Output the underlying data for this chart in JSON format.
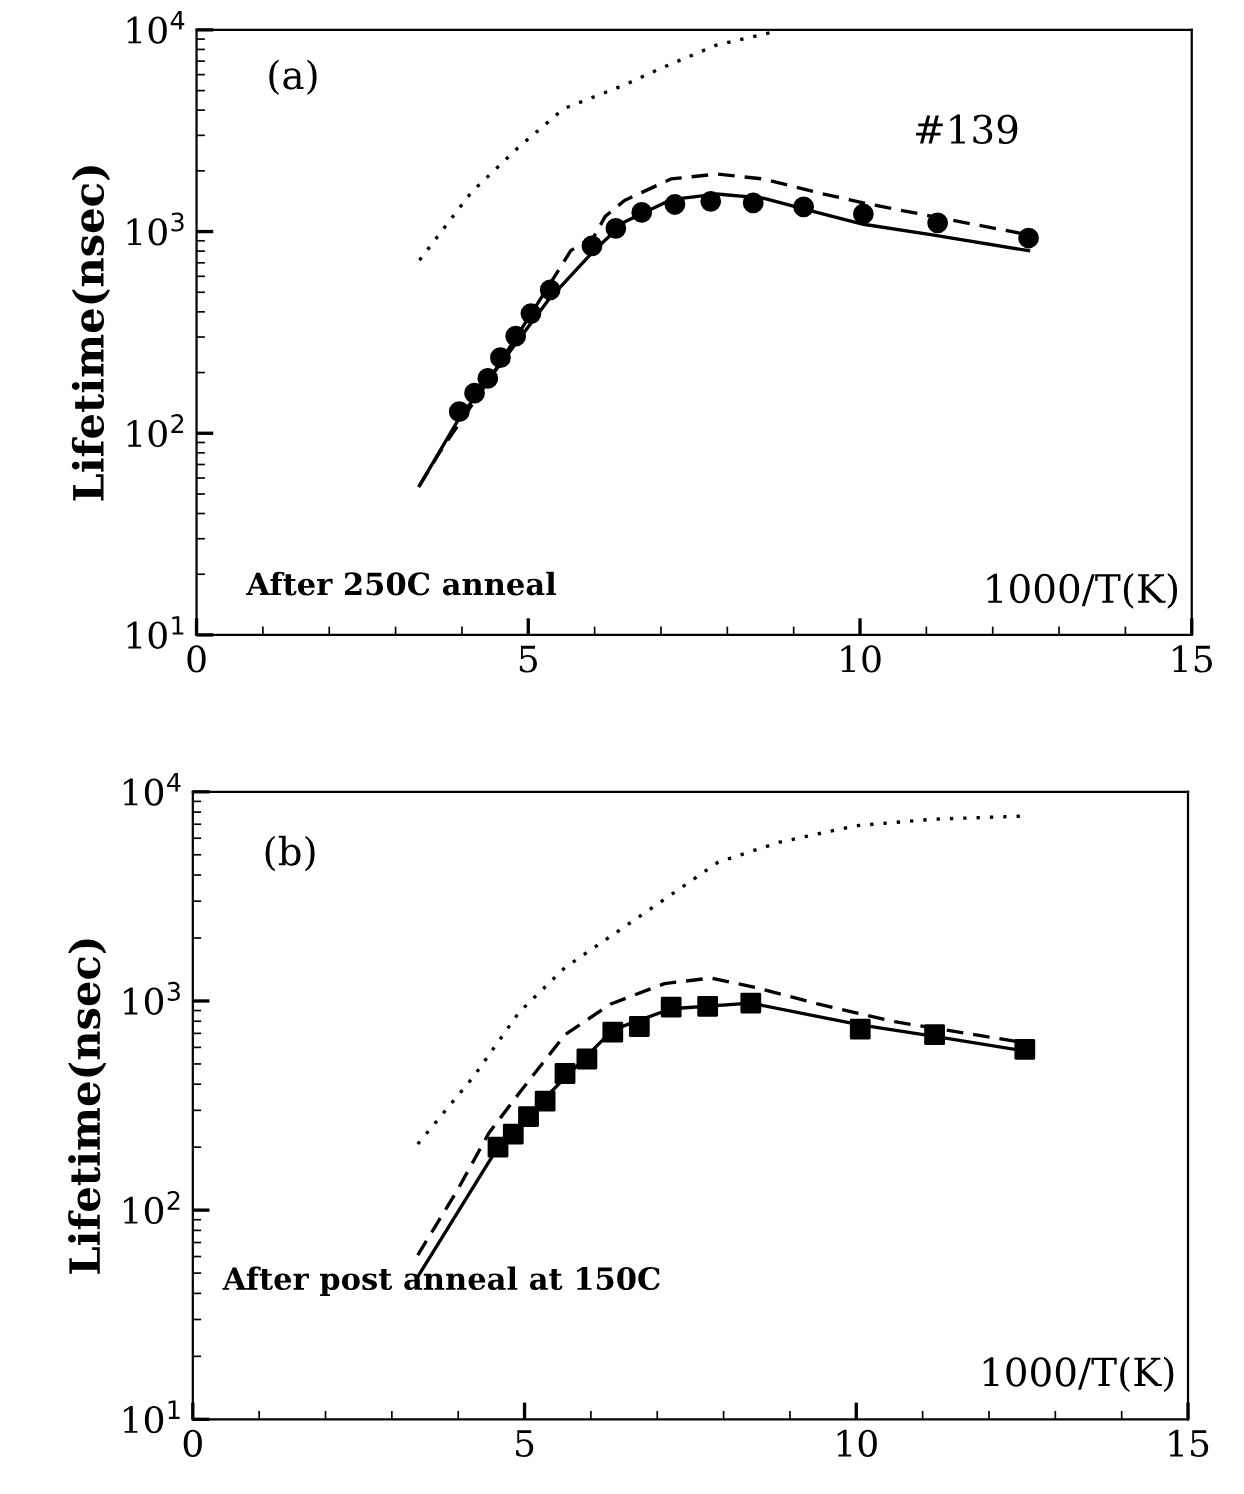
{
  "chart_data": [
    {
      "type": "line",
      "ylabel": "Lifetime(nsec)",
      "xlabel": "1000/T(K)",
      "annotations": [
        "(a)",
        "#139",
        "After 250C anneal"
      ],
      "log": "y",
      "xlim": [
        0,
        15
      ],
      "ylim": [
        10,
        10000
      ],
      "xticks": [
        0,
        5,
        10,
        15
      ],
      "yticks": [
        {
          "value": 10,
          "label": "10$^{1}$"
        },
        {
          "value": 100,
          "label": "10$^{2}$"
        },
        {
          "value": 1000,
          "label": "10$^{3}$"
        },
        {
          "value": 10000,
          "label": "10$^{4}$"
        }
      ],
      "grid": false,
      "legend": false,
      "series": [
        {
          "type": "scatter",
          "marker": "circle",
          "color": "#000000",
          "x": [
            3.96,
            4.19,
            4.39,
            4.58,
            4.81,
            5.04,
            5.33,
            5.96,
            6.32,
            6.71,
            7.21,
            7.75,
            8.39,
            9.15,
            10.05,
            11.17,
            12.54
          ],
          "values": [
            128,
            158,
            187,
            237,
            303,
            392,
            514,
            849,
            1038,
            1245,
            1362,
            1413,
            1387,
            1327,
            1222,
            1104,
            929
          ]
        },
        {
          "line_style": "solid",
          "color": "#000000",
          "x": [
            3.36,
            3.96,
            4.6,
            5.3,
            5.99,
            6.45,
            7.15,
            7.84,
            8.54,
            9.35,
            10.05,
            11.09,
            12.54
          ],
          "values": [
            55,
            119,
            225,
            457,
            804,
            1115,
            1439,
            1535,
            1466,
            1245,
            1087,
            964,
            804
          ]
        },
        {
          "line_style": "dashed",
          "color": "#000000",
          "x": [
            3.36,
            3.67,
            4.37,
            5.06,
            5.64,
            5.99,
            6.16,
            6.45,
            7.15,
            7.84,
            8.54,
            9.35,
            10.05,
            11.09,
            12.54
          ],
          "values": [
            55,
            81,
            176,
            399,
            804,
            946,
            1189,
            1426,
            1824,
            1928,
            1824,
            1563,
            1387,
            1189,
            964
          ]
        },
        {
          "line_style": "dotted",
          "color": "#000000",
          "x": [
            3.36,
            4.14,
            4.83,
            5.53,
            6.45,
            7.03,
            7.84,
            8.77
          ],
          "values": [
            721,
            1563,
            2576,
            4064,
            5333,
            6518,
            8414,
            9900
          ]
        }
      ]
    },
    {
      "type": "line",
      "ylabel": "Lifetime(nsec)",
      "xlabel": "1000/T(K)",
      "annotations": [
        "(b)",
        "After post anneal at 150C"
      ],
      "log": "y",
      "xlim": [
        0,
        15
      ],
      "ylim": [
        10,
        10000
      ],
      "xticks": [
        0,
        5,
        10,
        15
      ],
      "yticks": [
        {
          "value": 10,
          "label": "10$^{1}$"
        },
        {
          "value": 100,
          "label": "10$^{2}$"
        },
        {
          "value": 1000,
          "label": "10$^{3}$"
        },
        {
          "value": 10000,
          "label": "10$^{4}$"
        }
      ],
      "grid": false,
      "legend": false,
      "series": [
        {
          "type": "scatter",
          "marker": "square",
          "color": "#000000",
          "x": [
            4.6,
            4.83,
            5.06,
            5.31,
            5.61,
            5.94,
            6.33,
            6.73,
            7.21,
            7.76,
            8.41,
            10.06,
            11.18,
            12.54
          ],
          "values": [
            200,
            231,
            280,
            332,
            450,
            528,
            709,
            755,
            935,
            943,
            977,
            734,
            690,
            587
          ]
        },
        {
          "line_style": "solid",
          "color": "#000000",
          "x": [
            3.39,
            4.6,
            5.38,
            6.33,
            7.21,
            8.41,
            10.06,
            11.18,
            12.54
          ],
          "values": [
            48,
            200,
            363,
            728,
            918,
            977,
            768,
            678,
            577
          ]
        },
        {
          "line_style": "dashed",
          "color": "#000000",
          "x": [
            3.39,
            3.99,
            4.46,
            4.92,
            5.61,
            6.3,
            7.11,
            7.81,
            8.5,
            9.42,
            10.58,
            12.54
          ],
          "values": [
            61,
            125,
            233,
            363,
            690,
            968,
            1211,
            1288,
            1156,
            968,
            796,
            631
          ]
        },
        {
          "line_style": "dotted",
          "color": "#000000",
          "x": [
            3.39,
            4.23,
            4.92,
            5.61,
            6.77,
            7.92,
            8.85,
            10.0,
            11.15,
            12.54
          ],
          "values": [
            207,
            434,
            885,
            1445,
            2582,
            4613,
            5754,
            6887,
            7396,
            7656
          ]
        }
      ]
    }
  ]
}
